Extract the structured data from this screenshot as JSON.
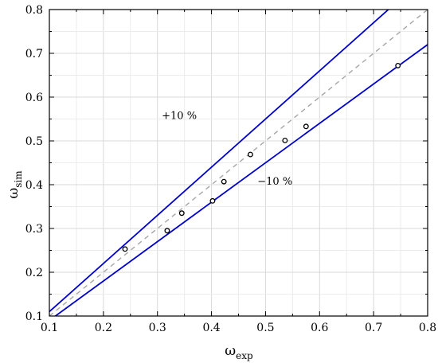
{
  "chart_data": {
    "type": "scatter",
    "title": "",
    "xlabel": {
      "main": "ω",
      "sub": "exp"
    },
    "ylabel": {
      "main": "ω",
      "sub": "sim"
    },
    "xlim": [
      0.1,
      0.8
    ],
    "ylim": [
      0.1,
      0.8
    ],
    "x_ticks": [
      "0.1",
      "0.2",
      "0.3",
      "0.4",
      "0.5",
      "0.6",
      "0.7",
      "0.8"
    ],
    "y_ticks": [
      "0.1",
      "0.2",
      "0.3",
      "0.4",
      "0.5",
      "0.6",
      "0.7",
      "0.8"
    ],
    "grid": true,
    "points": [
      {
        "x": 0.24,
        "y": 0.253
      },
      {
        "x": 0.318,
        "y": 0.295
      },
      {
        "x": 0.345,
        "y": 0.335
      },
      {
        "x": 0.402,
        "y": 0.363
      },
      {
        "x": 0.423,
        "y": 0.407
      },
      {
        "x": 0.472,
        "y": 0.469
      },
      {
        "x": 0.536,
        "y": 0.501
      },
      {
        "x": 0.575,
        "y": 0.533
      },
      {
        "x": 0.745,
        "y": 0.672
      }
    ],
    "reference_lines": [
      {
        "label": "+10 %",
        "slope": 1.1,
        "color": "#0000cc",
        "style": "solid"
      },
      {
        "label": "",
        "slope": 1.0,
        "color": "#a6a6a6",
        "style": "dashed"
      },
      {
        "label": "−10 %",
        "slope": 0.9,
        "color": "#0000cc",
        "style": "solid"
      }
    ],
    "annotations": [
      {
        "text": "+10 %",
        "x": 0.308,
        "y": 0.55
      },
      {
        "text": "−10 %",
        "x": 0.485,
        "y": 0.4
      }
    ]
  }
}
